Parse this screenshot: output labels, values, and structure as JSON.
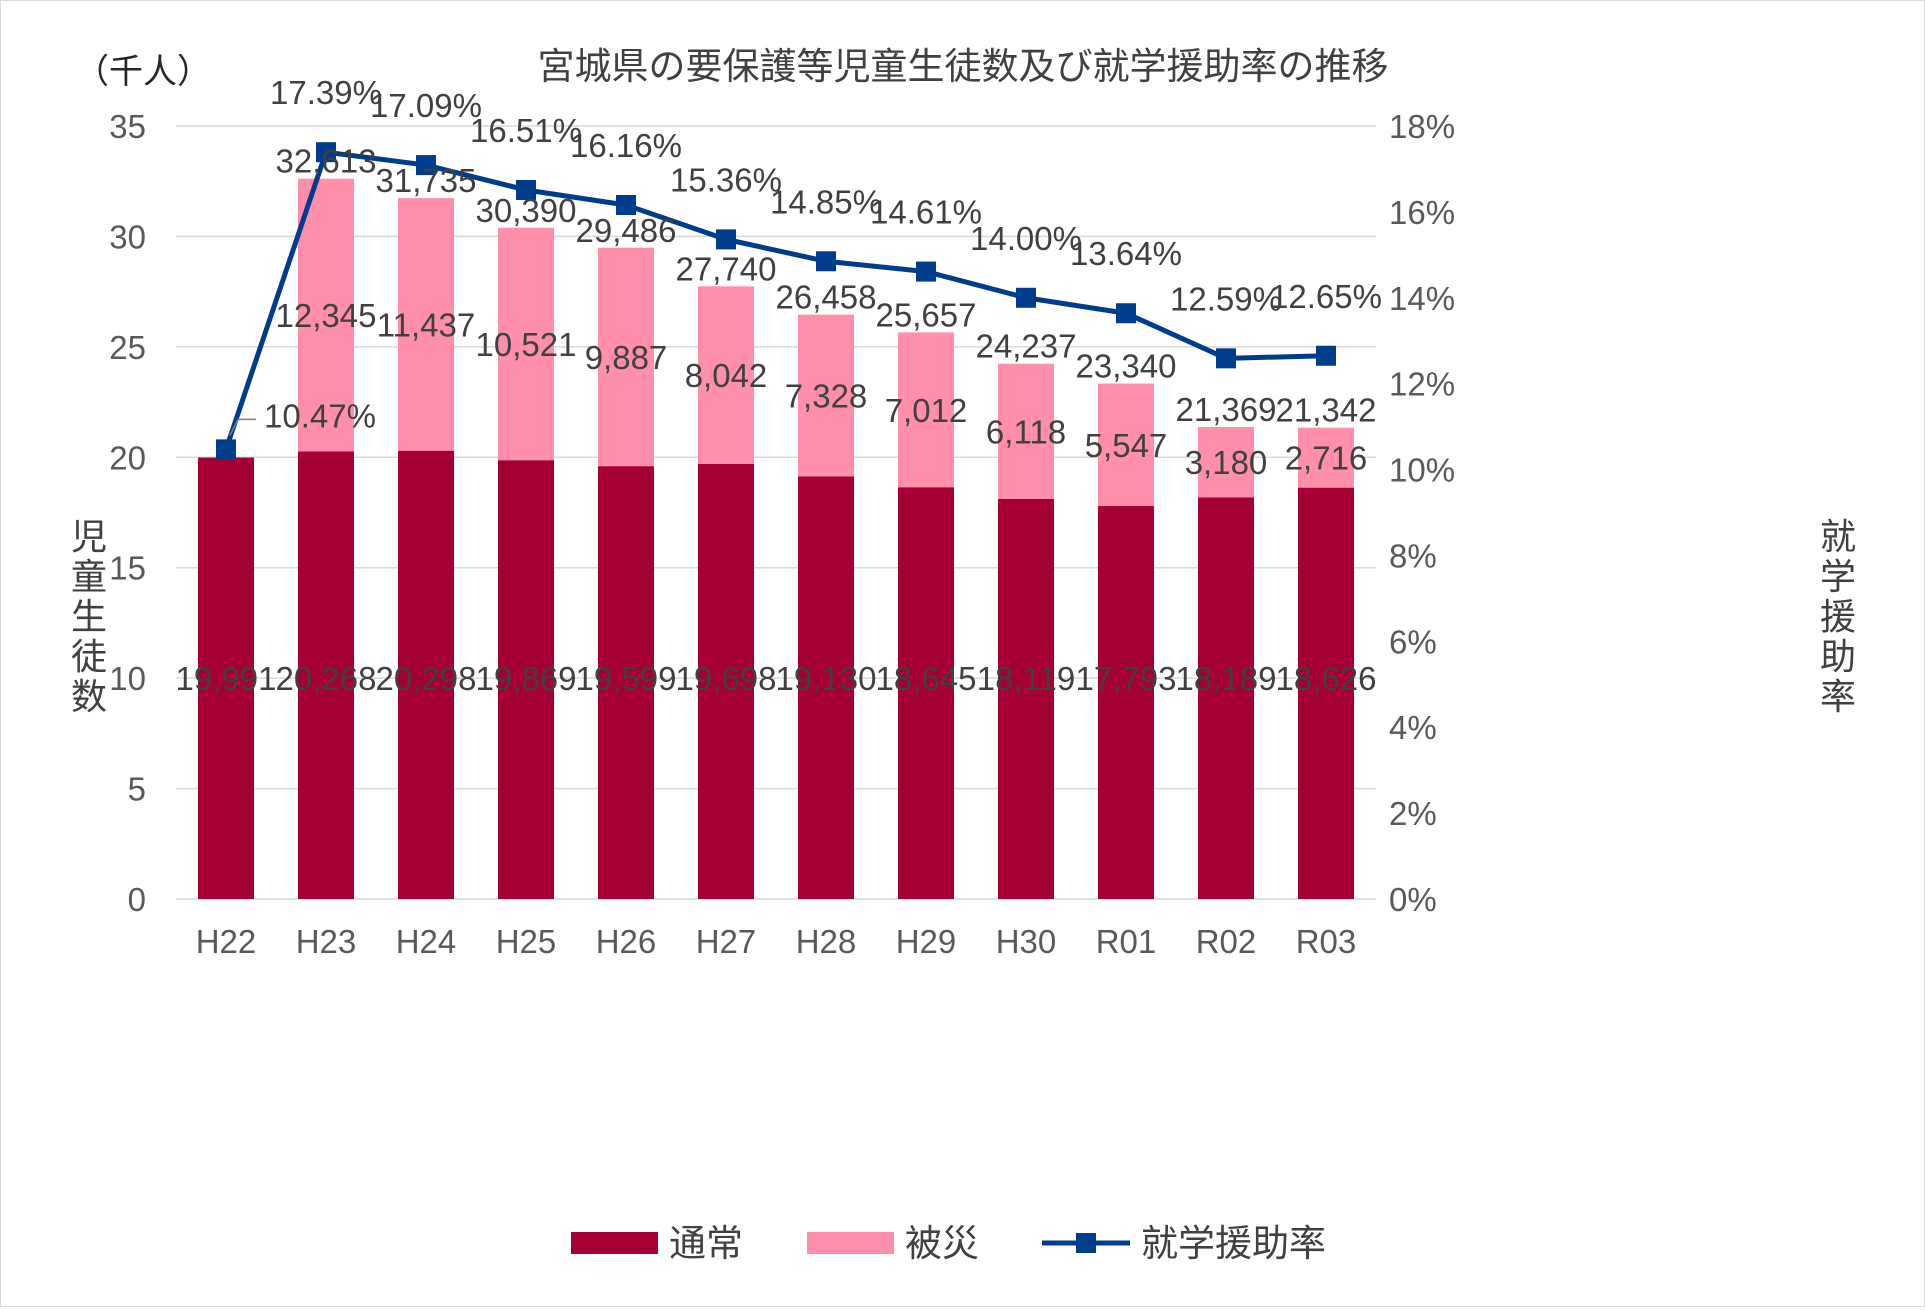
{
  "chart_data": {
    "type": "bar",
    "subtype": "stacked bar with line on secondary axis",
    "title": "宮城県の要保護等児童生徒数及び就学援助率の推移",
    "unit_label": "（千人）",
    "ylabel": "児童生徒数",
    "y2label": "就学援助率",
    "categories": [
      "H22",
      "H23",
      "H24",
      "H25",
      "H26",
      "H27",
      "H28",
      "H29",
      "H30",
      "R01",
      "R02",
      "R03"
    ],
    "ylim": [
      0,
      35
    ],
    "yticks": [
      "0",
      "5",
      "10",
      "15",
      "20",
      "25",
      "30",
      "35"
    ],
    "y2lim": [
      0,
      18
    ],
    "y2ticks": [
      "0%",
      "2%",
      "4%",
      "6%",
      "8%",
      "10%",
      "12%",
      "14%",
      "16%",
      "18%"
    ],
    "grid": true,
    "legend_position": "bottom",
    "series": [
      {
        "name": "通常",
        "kind": "bar",
        "axis": "left",
        "color": "#A50034",
        "values": [
          19991,
          20268,
          20298,
          19869,
          19599,
          19698,
          19130,
          18645,
          18119,
          17793,
          18189,
          18626
        ],
        "labels": [
          "19,991",
          "20,268",
          "20,298",
          "19,869",
          "19,599",
          "19,698",
          "19,130",
          "18,645",
          "18,119",
          "17,793",
          "18,189",
          "18,626"
        ]
      },
      {
        "name": "被災",
        "kind": "bar",
        "axis": "left",
        "color": "#FF8FAB",
        "values": [
          null,
          12345,
          11437,
          10521,
          9887,
          8042,
          7328,
          7012,
          6118,
          5547,
          3180,
          2716
        ],
        "labels": [
          "",
          "12,345",
          "11,437",
          "10,521",
          "9,887",
          "8,042",
          "7,328",
          "7,012",
          "6,118",
          "5,547",
          "3,180",
          "2,716"
        ]
      },
      {
        "name": "就学援助率",
        "kind": "line",
        "axis": "right",
        "color": "#003C8C",
        "values": [
          10.47,
          17.39,
          17.09,
          16.51,
          16.16,
          15.36,
          14.85,
          14.61,
          14.0,
          13.64,
          12.59,
          12.65
        ],
        "labels": [
          "10.47%",
          "17.39%",
          "17.09%",
          "16.51%",
          "16.16%",
          "15.36%",
          "14.85%",
          "14.61%",
          "14.00%",
          "13.64%",
          "12.59%",
          "12.65%"
        ]
      }
    ],
    "totals": {
      "values": [
        null,
        32613,
        31735,
        30390,
        29486,
        27740,
        26458,
        25657,
        24237,
        23340,
        21369,
        21342
      ],
      "labels": [
        "",
        "32,613",
        "31,735",
        "30,390",
        "29,486",
        "27,740",
        "26,458",
        "25,657",
        "24,237",
        "23,340",
        "21,369",
        "21,342"
      ]
    }
  }
}
